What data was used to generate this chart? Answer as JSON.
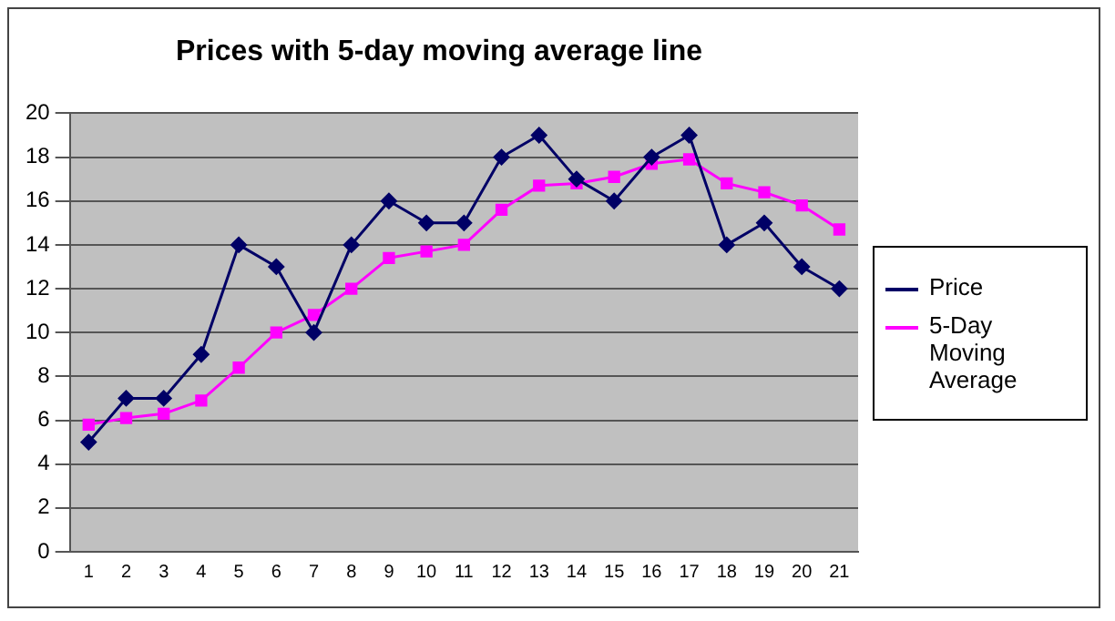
{
  "chart_data": {
    "type": "line",
    "title": "Prices with 5-day moving average line",
    "categories": [
      "1",
      "2",
      "3",
      "4",
      "5",
      "6",
      "7",
      "8",
      "9",
      "10",
      "11",
      "12",
      "13",
      "14",
      "15",
      "16",
      "17",
      "18",
      "19",
      "20",
      "21"
    ],
    "series": [
      {
        "name": "Price",
        "color": "#000066",
        "marker": "diamond",
        "values": [
          5,
          7,
          7,
          9,
          14,
          13,
          10,
          14,
          16,
          15,
          15,
          18,
          19,
          17,
          16,
          18,
          19,
          14,
          15,
          13,
          12
        ]
      },
      {
        "name": "5-Day Moving Average",
        "color": "#ff00ff",
        "marker": "square",
        "values": [
          5.8,
          6.1,
          6.3,
          6.9,
          8.4,
          10,
          10.8,
          12,
          13.4,
          13.7,
          14,
          15.6,
          16.7,
          16.8,
          17.1,
          17.7,
          17.9,
          16.8,
          16.4,
          15.8,
          14.7
        ]
      }
    ],
    "ylim": [
      0,
      20
    ],
    "yticks": [
      0,
      2,
      4,
      6,
      8,
      10,
      12,
      14,
      16,
      18,
      20
    ],
    "grid": "y",
    "legend": "right",
    "line_style": "solid"
  }
}
